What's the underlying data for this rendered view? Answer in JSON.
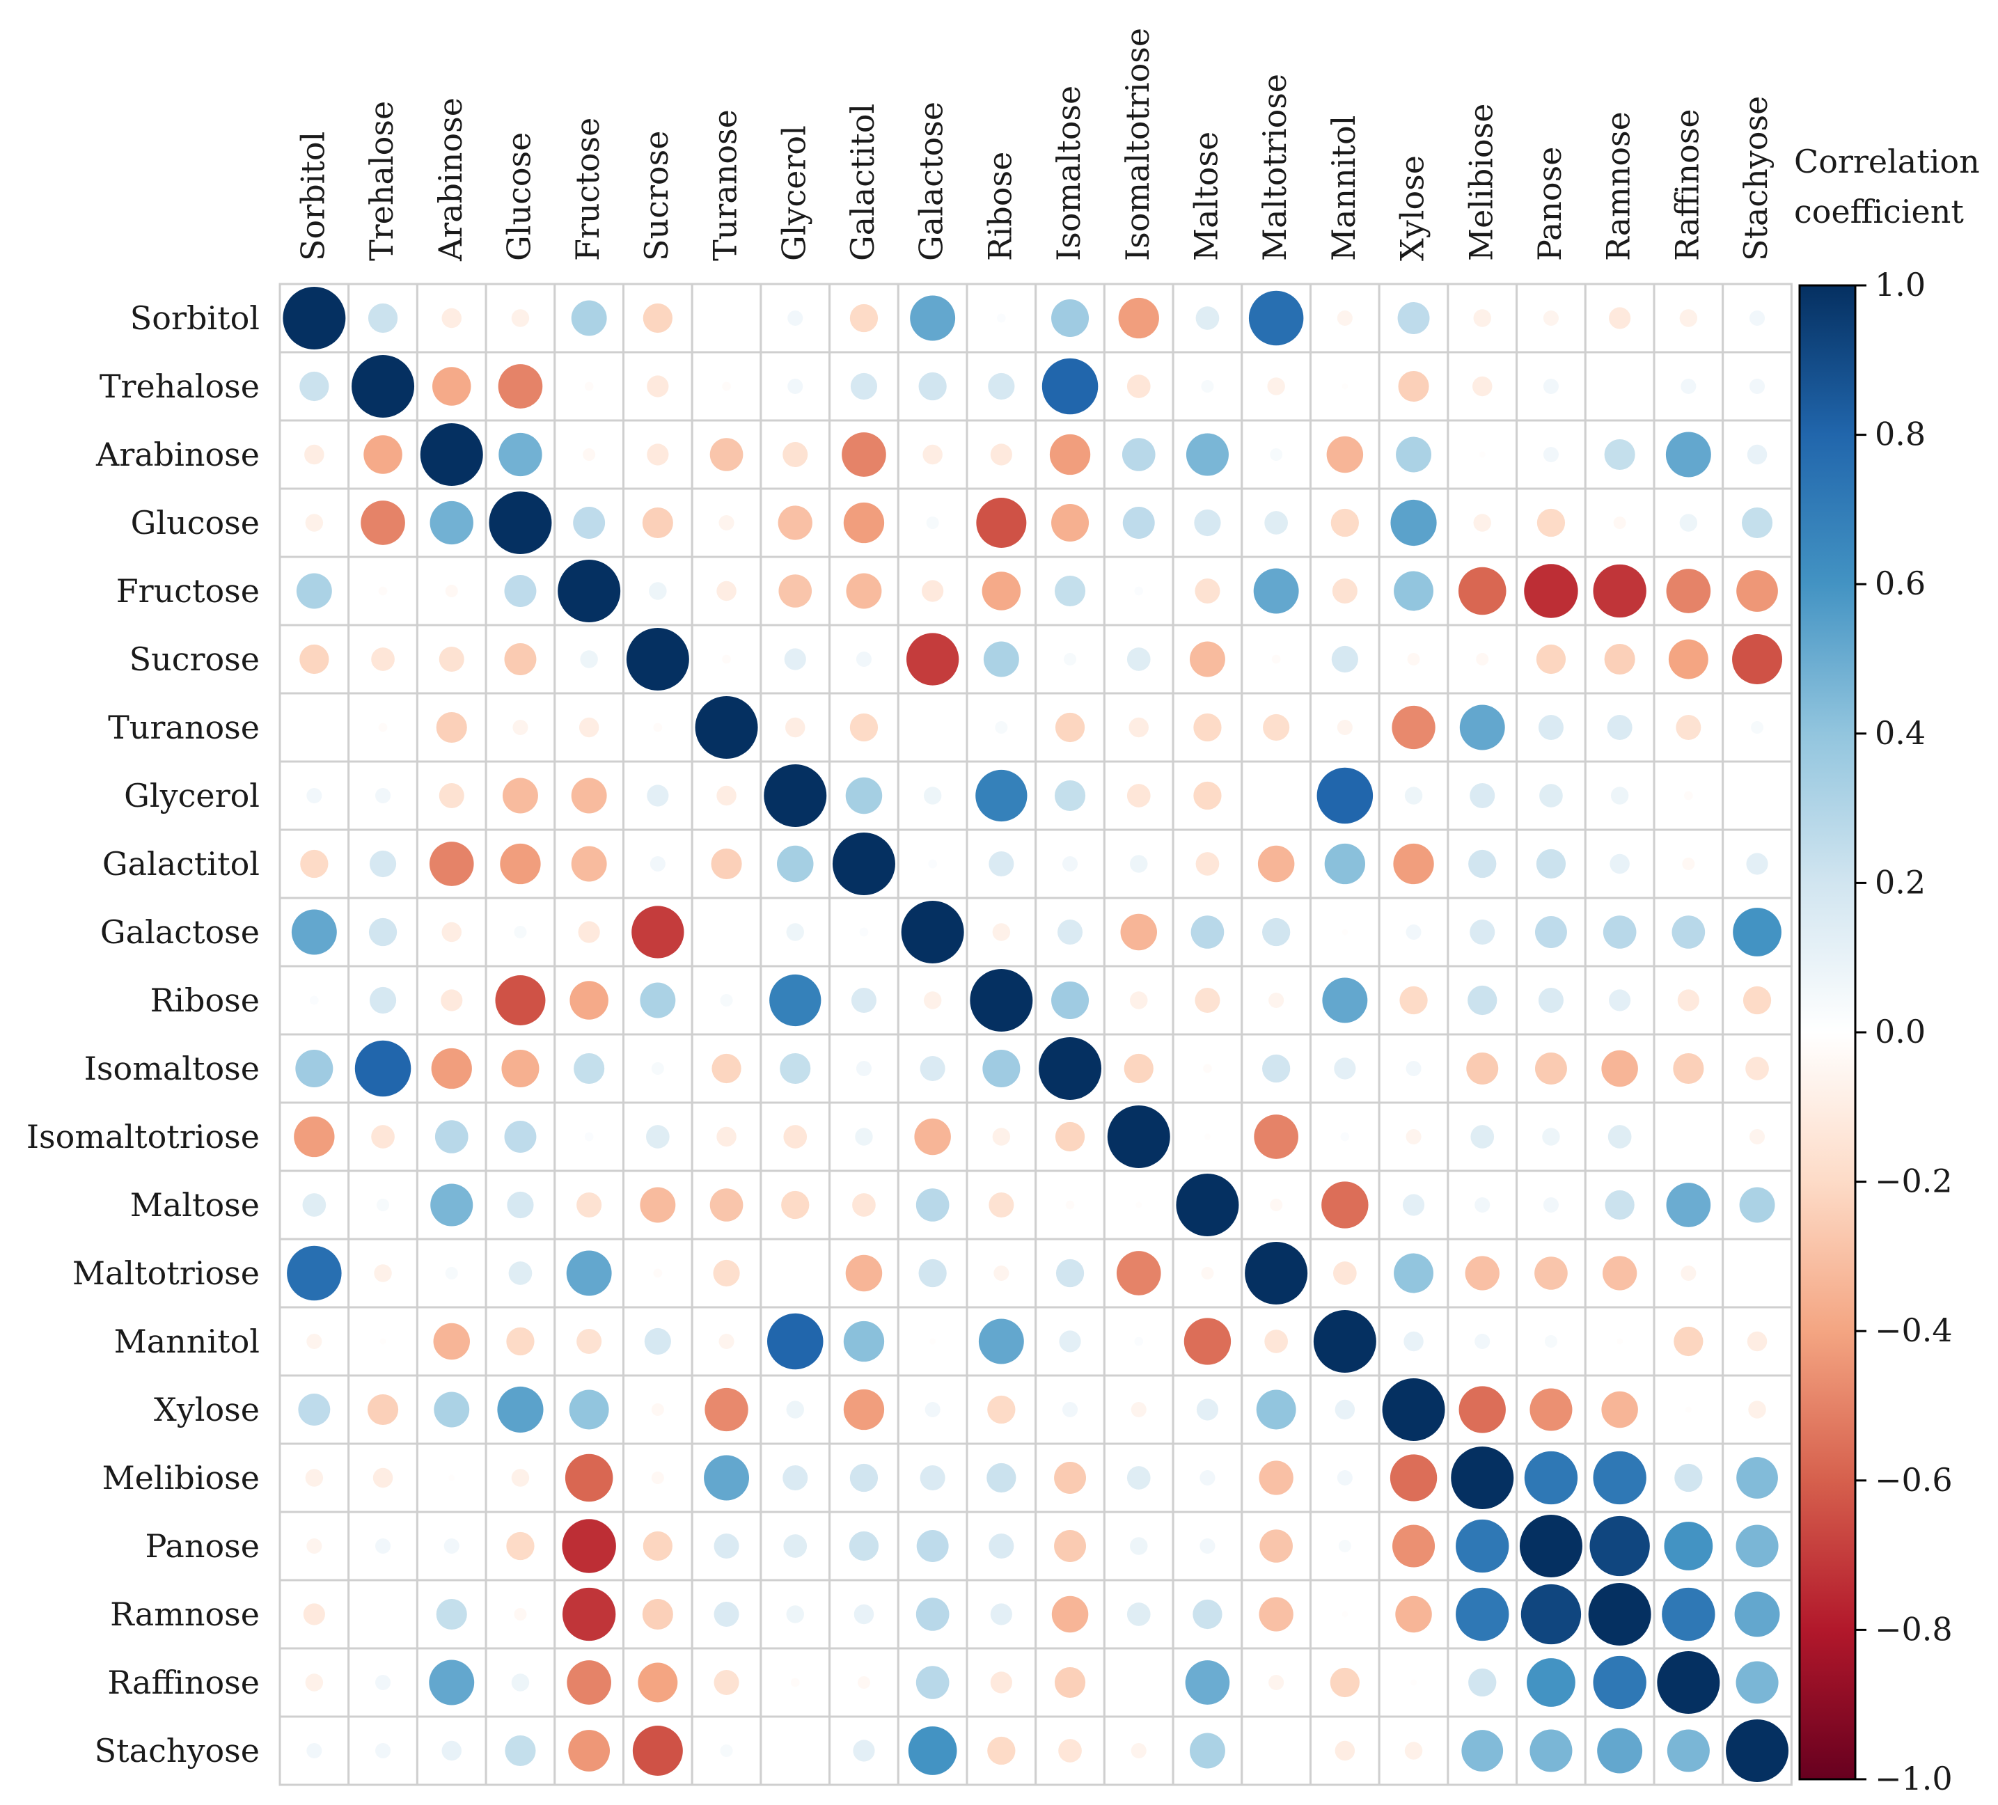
{
  "chart_data": {
    "type": "heatmap",
    "title": "",
    "variables": [
      "Sorbitol",
      "Trehalose",
      "Arabinose",
      "Glucose",
      "Fructose",
      "Sucrose",
      "Turanose",
      "Glycerol",
      "Galactitol",
      "Galactose",
      "Ribose",
      "Isomaltose",
      "Isomaltotriose",
      "Maltose",
      "Maltotriose",
      "Mannitol",
      "Xylose",
      "Melibiose",
      "Panose",
      "Ramnose",
      "Raffinose",
      "Stachyose"
    ],
    "matrix": [
      [
        1.0,
        0.22,
        -0.1,
        -0.08,
        0.32,
        -0.22,
        0.0,
        0.06,
        -0.2,
        0.52,
        0.02,
        0.36,
        -0.42,
        0.14,
        0.76,
        -0.06,
        0.26,
        -0.08,
        -0.06,
        -0.12,
        -0.08,
        0.06
      ],
      [
        0.22,
        1.0,
        -0.38,
        -0.5,
        -0.02,
        -0.12,
        -0.02,
        0.06,
        0.18,
        0.2,
        0.18,
        0.8,
        -0.14,
        0.04,
        -0.08,
        -0.01,
        -0.24,
        -0.1,
        0.06,
        0.0,
        0.06,
        0.06
      ],
      [
        -0.1,
        -0.38,
        1.0,
        0.48,
        -0.04,
        -0.12,
        -0.28,
        -0.16,
        -0.5,
        -0.1,
        -0.12,
        -0.42,
        0.28,
        0.46,
        0.04,
        -0.34,
        0.32,
        -0.01,
        0.06,
        0.24,
        0.52,
        0.1
      ],
      [
        -0.08,
        -0.5,
        0.48,
        1.0,
        0.26,
        -0.24,
        -0.06,
        -0.3,
        -0.42,
        0.04,
        -0.64,
        -0.36,
        0.26,
        0.18,
        0.14,
        -0.2,
        0.54,
        -0.08,
        -0.2,
        -0.04,
        0.08,
        0.24
      ],
      [
        0.32,
        -0.02,
        -0.04,
        0.26,
        1.0,
        0.08,
        -0.1,
        -0.28,
        -0.32,
        -0.12,
        -0.38,
        0.24,
        0.02,
        -0.16,
        0.52,
        -0.16,
        0.4,
        -0.58,
        -0.74,
        -0.72,
        -0.5,
        -0.44
      ],
      [
        -0.22,
        -0.14,
        -0.16,
        -0.26,
        0.08,
        1.0,
        -0.02,
        0.12,
        0.06,
        -0.7,
        0.32,
        0.04,
        0.14,
        -0.32,
        -0.02,
        0.18,
        -0.04,
        -0.04,
        -0.22,
        -0.24,
        -0.4,
        -0.64
      ],
      [
        0.0,
        -0.02,
        -0.24,
        -0.06,
        -0.1,
        -0.02,
        1.0,
        -0.1,
        -0.2,
        0.0,
        0.04,
        -0.22,
        -0.1,
        -0.2,
        -0.18,
        -0.06,
        -0.48,
        0.52,
        0.16,
        0.16,
        -0.16,
        0.04
      ],
      [
        0.06,
        0.06,
        -0.16,
        -0.32,
        -0.32,
        0.12,
        -0.1,
        1.0,
        0.34,
        0.08,
        0.68,
        0.24,
        -0.14,
        -0.2,
        0.0,
        0.8,
        0.08,
        0.16,
        0.14,
        0.08,
        -0.02,
        0.0
      ],
      [
        -0.2,
        0.18,
        -0.5,
        -0.42,
        -0.32,
        0.06,
        -0.24,
        0.34,
        1.0,
        0.02,
        0.16,
        0.06,
        0.08,
        -0.14,
        -0.34,
        0.42,
        -0.42,
        0.2,
        0.22,
        0.1,
        -0.04,
        0.12
      ],
      [
        0.52,
        0.2,
        -0.1,
        0.04,
        -0.12,
        -0.7,
        0.0,
        0.08,
        0.02,
        1.0,
        -0.08,
        0.16,
        -0.34,
        0.28,
        0.2,
        -0.01,
        0.06,
        0.16,
        0.26,
        0.28,
        0.28,
        0.6
      ],
      [
        0.02,
        0.18,
        -0.12,
        -0.64,
        -0.38,
        0.32,
        0.04,
        0.68,
        0.16,
        -0.08,
        1.0,
        0.36,
        -0.08,
        -0.16,
        -0.06,
        0.52,
        -0.2,
        0.22,
        0.16,
        0.12,
        -0.12,
        -0.2
      ],
      [
        0.36,
        0.8,
        -0.42,
        -0.36,
        0.24,
        0.04,
        -0.22,
        0.24,
        0.06,
        0.16,
        0.36,
        1.0,
        -0.22,
        -0.02,
        0.2,
        0.12,
        0.06,
        -0.26,
        -0.26,
        -0.34,
        -0.24,
        -0.14
      ],
      [
        -0.42,
        -0.14,
        0.28,
        0.26,
        0.02,
        0.14,
        -0.1,
        -0.14,
        0.08,
        -0.34,
        -0.08,
        -0.22,
        1.0,
        -0.01,
        -0.5,
        0.02,
        -0.06,
        0.14,
        0.08,
        0.14,
        0.0,
        -0.06
      ],
      [
        0.14,
        0.04,
        0.46,
        0.18,
        -0.16,
        -0.32,
        -0.28,
        -0.2,
        -0.14,
        0.28,
        -0.16,
        -0.02,
        -0.01,
        1.0,
        -0.04,
        -0.56,
        0.12,
        0.06,
        0.06,
        0.22,
        0.5,
        0.32
      ],
      [
        0.76,
        -0.08,
        0.04,
        0.14,
        0.52,
        -0.02,
        -0.18,
        0.0,
        -0.34,
        0.2,
        -0.06,
        0.2,
        -0.5,
        -0.04,
        1.0,
        -0.14,
        0.4,
        -0.3,
        -0.28,
        -0.3,
        -0.06,
        0.0
      ],
      [
        -0.06,
        -0.01,
        -0.34,
        -0.2,
        -0.16,
        0.18,
        -0.06,
        0.8,
        0.42,
        -0.01,
        0.52,
        0.12,
        0.02,
        -0.56,
        -0.14,
        1.0,
        0.1,
        0.06,
        0.04,
        -0.01,
        -0.22,
        -0.1
      ],
      [
        0.26,
        -0.24,
        0.32,
        0.54,
        0.4,
        -0.04,
        -0.48,
        0.08,
        -0.42,
        0.06,
        -0.2,
        0.06,
        -0.06,
        0.12,
        0.4,
        0.1,
        1.0,
        -0.56,
        -0.46,
        -0.34,
        -0.01,
        -0.08
      ],
      [
        -0.08,
        -0.1,
        -0.01,
        -0.08,
        -0.58,
        -0.04,
        0.52,
        0.16,
        0.2,
        0.16,
        0.22,
        -0.26,
        0.14,
        0.06,
        -0.3,
        0.06,
        -0.56,
        1.0,
        0.72,
        0.72,
        0.2,
        0.44
      ],
      [
        -0.06,
        0.06,
        0.06,
        -0.2,
        -0.74,
        -0.22,
        0.16,
        0.14,
        0.22,
        0.26,
        0.16,
        -0.26,
        0.08,
        0.06,
        -0.28,
        0.04,
        -0.46,
        0.72,
        1.0,
        0.92,
        0.6,
        0.46
      ],
      [
        -0.12,
        0.0,
        0.24,
        -0.04,
        -0.72,
        -0.24,
        0.16,
        0.08,
        0.1,
        0.28,
        0.12,
        -0.34,
        0.14,
        0.22,
        -0.3,
        -0.01,
        -0.34,
        0.72,
        0.92,
        1.0,
        0.72,
        0.52
      ],
      [
        -0.08,
        0.06,
        0.52,
        0.08,
        -0.5,
        -0.4,
        -0.16,
        -0.02,
        -0.04,
        0.28,
        -0.12,
        -0.24,
        0.0,
        0.5,
        -0.06,
        -0.22,
        -0.01,
        0.2,
        0.6,
        0.72,
        1.0,
        0.46
      ],
      [
        0.06,
        0.06,
        0.1,
        0.24,
        -0.44,
        -0.64,
        0.04,
        0.0,
        0.12,
        0.6,
        -0.2,
        -0.14,
        -0.06,
        0.32,
        0.0,
        -0.1,
        -0.08,
        0.44,
        0.46,
        0.52,
        0.46,
        1.0
      ]
    ],
    "colorbar": {
      "label_lines": [
        "Correlation",
        "coefficient"
      ],
      "ticks": [
        "1.0",
        "0.8",
        "0.6",
        "0.4",
        "0.2",
        "0.0",
        "−0.2",
        "−0.4",
        "−0.6",
        "−0.8",
        "−1.0"
      ],
      "tick_values": [
        1.0,
        0.8,
        0.6,
        0.4,
        0.2,
        0.0,
        -0.2,
        -0.4,
        -0.6,
        -0.8,
        -1.0
      ],
      "range": [
        -1,
        1
      ],
      "colors_low_to_high": [
        "#67001f",
        "#b2182b",
        "#d6604d",
        "#f4a582",
        "#fddbc7",
        "#ffffff",
        "#d1e5f0",
        "#92c5de",
        "#4393c3",
        "#2166ac",
        "#053061"
      ]
    }
  }
}
